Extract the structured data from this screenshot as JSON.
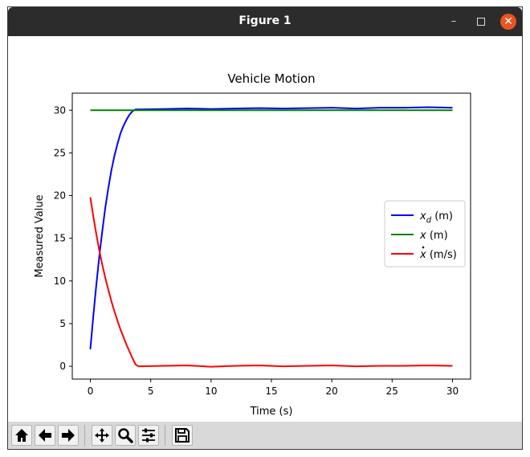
{
  "window": {
    "title": "Figure 1"
  },
  "toolbar": {
    "buttons": [
      {
        "name": "home-button",
        "icon": "home-icon"
      },
      {
        "name": "back-button",
        "icon": "arrow-left-icon"
      },
      {
        "name": "forward-button",
        "icon": "arrow-right-icon"
      },
      {
        "name": "pan-button",
        "icon": "move-icon"
      },
      {
        "name": "zoom-button",
        "icon": "magnifier-icon"
      },
      {
        "name": "configure-subplots-button",
        "icon": "sliders-icon"
      },
      {
        "name": "save-button",
        "icon": "floppy-disk-icon"
      }
    ]
  },
  "chart_data": {
    "type": "line",
    "title": "Vehicle Motion",
    "xlabel": "Time (s)",
    "ylabel": "Measured Value",
    "xlim": [
      -1.5,
      31.5
    ],
    "ylim": [
      -1.5,
      32.0
    ],
    "xticks": [
      0,
      5,
      10,
      15,
      20,
      25,
      30
    ],
    "yticks": [
      0,
      5,
      10,
      15,
      20,
      25,
      30
    ],
    "grid": false,
    "legend": {
      "placement": "center-right"
    },
    "series": [
      {
        "name_base": "x",
        "name_sub": "d",
        "name_unit": " (m)",
        "color": "#0000ff",
        "x": [
          0,
          0.25,
          0.5,
          0.75,
          1.0,
          1.25,
          1.5,
          1.75,
          2.0,
          2.25,
          2.5,
          2.75,
          3.0,
          3.25,
          3.5,
          3.75,
          4.0,
          6,
          8,
          10,
          12,
          14,
          16,
          18,
          20,
          22,
          24,
          26,
          28,
          30
        ],
        "y": [
          2.0,
          6.0,
          9.7,
          13.0,
          16.0,
          18.7,
          21.0,
          23.0,
          24.7,
          26.1,
          27.3,
          28.2,
          28.9,
          29.5,
          29.9,
          30.1,
          30.1,
          30.15,
          30.2,
          30.15,
          30.2,
          30.25,
          30.2,
          30.25,
          30.3,
          30.2,
          30.3,
          30.3,
          30.35,
          30.3
        ]
      },
      {
        "name_base": "x",
        "name_sub": "",
        "name_unit": " (m)",
        "color": "#008000",
        "x": [
          0,
          30
        ],
        "y": [
          30,
          30
        ]
      },
      {
        "name_base": "x",
        "name_sub": "",
        "name_unit": " (m/s)",
        "dot": true,
        "color": "#ff0000",
        "x": [
          0,
          0.25,
          0.5,
          0.75,
          1.0,
          1.25,
          1.5,
          1.75,
          2.0,
          2.25,
          2.5,
          2.75,
          3.0,
          3.25,
          3.5,
          3.75,
          4.0,
          6,
          8,
          10,
          12,
          14,
          16,
          18,
          20,
          22,
          24,
          26,
          28,
          30
        ],
        "y": [
          19.8,
          17.5,
          15.4,
          13.5,
          11.8,
          10.3,
          8.9,
          7.6,
          6.4,
          5.3,
          4.3,
          3.4,
          2.5,
          1.7,
          0.9,
          0.2,
          0.0,
          0.05,
          0.1,
          -0.05,
          0.05,
          0.1,
          0.0,
          0.05,
          0.1,
          0.0,
          0.05,
          0.05,
          0.1,
          0.05
        ]
      }
    ]
  }
}
